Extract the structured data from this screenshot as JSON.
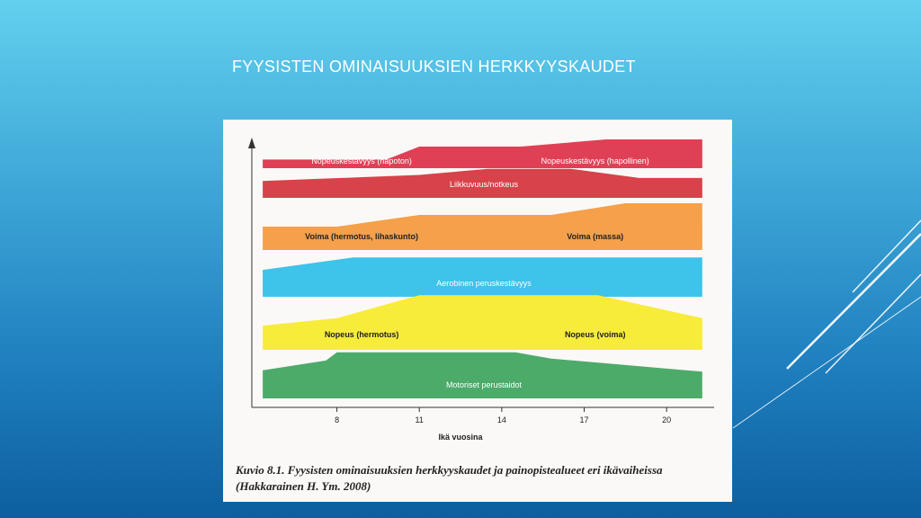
{
  "slide": {
    "title": "FYYSISTEN OMINAISUUKSIEN HERKKYYSKAUDET"
  },
  "chart_data": {
    "type": "area",
    "xlabel": "Ikä vuosina",
    "x_ticks": [
      8,
      11,
      14,
      17,
      20
    ],
    "xlim": [
      5.1,
      21.6
    ],
    "bands": [
      {
        "name": "Nopeuskestävyys (hapoton) / Nopeuskestävyys (hapollinen)",
        "labels": [
          "Nopeuskestävyys (hapoton)",
          "Nopeuskestävyys (hapollinen)"
        ],
        "color": "#e04055",
        "profile": [
          [
            5.3,
            0.3
          ],
          [
            9.8,
            0.3
          ],
          [
            11.0,
            0.75
          ],
          [
            14.7,
            0.75
          ],
          [
            17.8,
            1.0
          ],
          [
            21.3,
            1.0
          ]
        ]
      },
      {
        "name": "Liikkuvuus/notkeus",
        "labels": [
          "Liikkuvuus/notkeus"
        ],
        "color": "#d8424a",
        "profile": [
          [
            5.3,
            0.55
          ],
          [
            11.0,
            0.75
          ],
          [
            13.5,
            0.95
          ],
          [
            16.5,
            0.95
          ],
          [
            19.0,
            0.65
          ],
          [
            21.3,
            0.65
          ]
        ]
      },
      {
        "name": "Voima (hermotus, lihaskunto) / Voima (massa)",
        "labels": [
          "Voima (hermotus, lihaskunto)",
          "Voima (massa)"
        ],
        "color": "#f5a04a",
        "profile": [
          [
            5.3,
            0.5
          ],
          [
            8.0,
            0.5
          ],
          [
            11.0,
            0.75
          ],
          [
            15.8,
            0.75
          ],
          [
            18.5,
            1.0
          ],
          [
            21.3,
            1.0
          ]
        ]
      },
      {
        "name": "Aerobinen peruskestävyys",
        "labels": [
          "Aerobinen peruskestävyys"
        ],
        "color": "#3ec3ea",
        "profile": [
          [
            5.3,
            0.65
          ],
          [
            8.6,
            0.95
          ],
          [
            21.3,
            0.95
          ]
        ]
      },
      {
        "name": "Nopeus (hermotus) / Nopeus (voima)",
        "labels": [
          "Nopeus (hermotus)",
          "Nopeus (voima)"
        ],
        "color": "#f7ec3a",
        "profile": [
          [
            5.3,
            0.42
          ],
          [
            8.0,
            0.55
          ],
          [
            11.0,
            0.95
          ],
          [
            17.5,
            0.95
          ],
          [
            21.3,
            0.55
          ]
        ]
      },
      {
        "name": "Motoriset perustaidot",
        "labels": [
          "Motoriset perustaidot"
        ],
        "color": "#4dab6a",
        "profile": [
          [
            5.3,
            0.58
          ],
          [
            7.6,
            0.78
          ],
          [
            8.0,
            0.95
          ],
          [
            14.5,
            0.95
          ],
          [
            15.8,
            0.82
          ],
          [
            21.3,
            0.55
          ]
        ]
      }
    ]
  },
  "caption": {
    "line1": "Kuvio 8.1. Fyysisten ominaisuuksien herkkyyskaudet ja painopistealueet eri ikävaiheissa",
    "line2": "(Hakkarainen H. Ym. 2008)"
  }
}
